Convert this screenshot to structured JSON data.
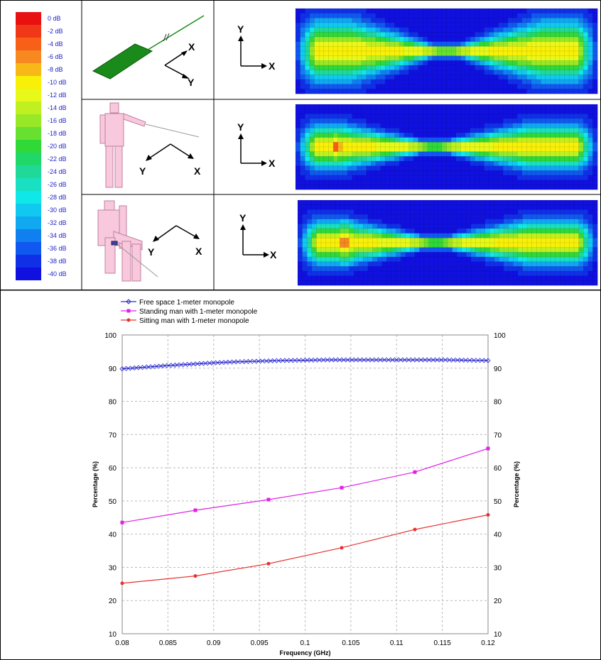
{
  "colorbar": {
    "labels": [
      "0 dB",
      "-2 dB",
      "-4 dB",
      "-6 dB",
      "-8 dB",
      "-10 dB",
      "-12 dB",
      "-14 dB",
      "-16 dB",
      "-18 dB",
      "-20 dB",
      "-22 dB",
      "-24 dB",
      "-26 dB",
      "-28 dB",
      "-30 dB",
      "-32 dB",
      "-34 dB",
      "-36 dB",
      "-38 dB",
      "-40 dB"
    ],
    "colors": [
      "#e81010",
      "#f03818",
      "#f86018",
      "#f88820",
      "#f8b818",
      "#f8f008",
      "#e8f818",
      "#c0f020",
      "#98e828",
      "#68e030",
      "#30d838",
      "#20d868",
      "#20d898",
      "#18e0c0",
      "#10e8e8",
      "#10c8f0",
      "#10a8f0",
      "#1080f0",
      "#1058f0",
      "#1030e8",
      "#1010e0"
    ]
  },
  "rows": [
    {
      "axis_x": "X",
      "axis_y": "Y",
      "model": "antenna-plate",
      "model_x": "X",
      "model_y": "Y"
    },
    {
      "axis_x": "X",
      "axis_y": "Y",
      "model": "standing-man",
      "model_x": "X",
      "model_y": "Y"
    },
    {
      "axis_x": "X",
      "axis_y": "Y",
      "model": "sitting-man",
      "model_x": "X",
      "model_y": "Y"
    }
  ],
  "chart_data": {
    "type": "line",
    "xlabel": "Frequency (GHz)",
    "ylabel": "Percentage (%)",
    "ylabel_right": "Percentage (%)",
    "xlim": [
      0.08,
      0.12
    ],
    "ylim": [
      10,
      100
    ],
    "xticks": [
      0.08,
      0.085,
      0.09,
      0.095,
      0.1,
      0.105,
      0.11,
      0.115,
      0.12
    ],
    "xtick_labels": [
      "0.08",
      "0.085",
      "0.09",
      "0.095",
      "0.1",
      "0.105",
      "0.11",
      "0.115",
      "0.12"
    ],
    "yticks": [
      10,
      20,
      30,
      40,
      50,
      60,
      70,
      80,
      90,
      100
    ],
    "grid": true,
    "legend_position": "top-left",
    "series": [
      {
        "name": "Free space 1-meter monopole",
        "color": "#2828d0",
        "marker": "diamond",
        "x": [
          0.08,
          0.0825,
          0.085,
          0.0875,
          0.09,
          0.0925,
          0.095,
          0.0975,
          0.1,
          0.1025,
          0.105,
          0.1075,
          0.11,
          0.1125,
          0.115,
          0.1175,
          0.12
        ],
        "y": [
          89.8,
          90.3,
          90.8,
          91.2,
          91.6,
          91.9,
          92.1,
          92.3,
          92.4,
          92.5,
          92.5,
          92.5,
          92.5,
          92.5,
          92.5,
          92.4,
          92.3
        ],
        "dense": true
      },
      {
        "name": "Standing man with 1-meter monopole",
        "color": "#e020e8",
        "marker": "square",
        "x": [
          0.08,
          0.088,
          0.096,
          0.104,
          0.112,
          0.12
        ],
        "y": [
          43.5,
          47.2,
          50.4,
          54.0,
          58.7,
          65.8
        ]
      },
      {
        "name": "Sitting man with 1-meter monopole",
        "color": "#e83030",
        "marker": "circle",
        "x": [
          0.08,
          0.088,
          0.096,
          0.104,
          0.112,
          0.12
        ],
        "y": [
          25.2,
          27.4,
          31.1,
          35.9,
          41.4,
          45.8
        ]
      }
    ]
  }
}
